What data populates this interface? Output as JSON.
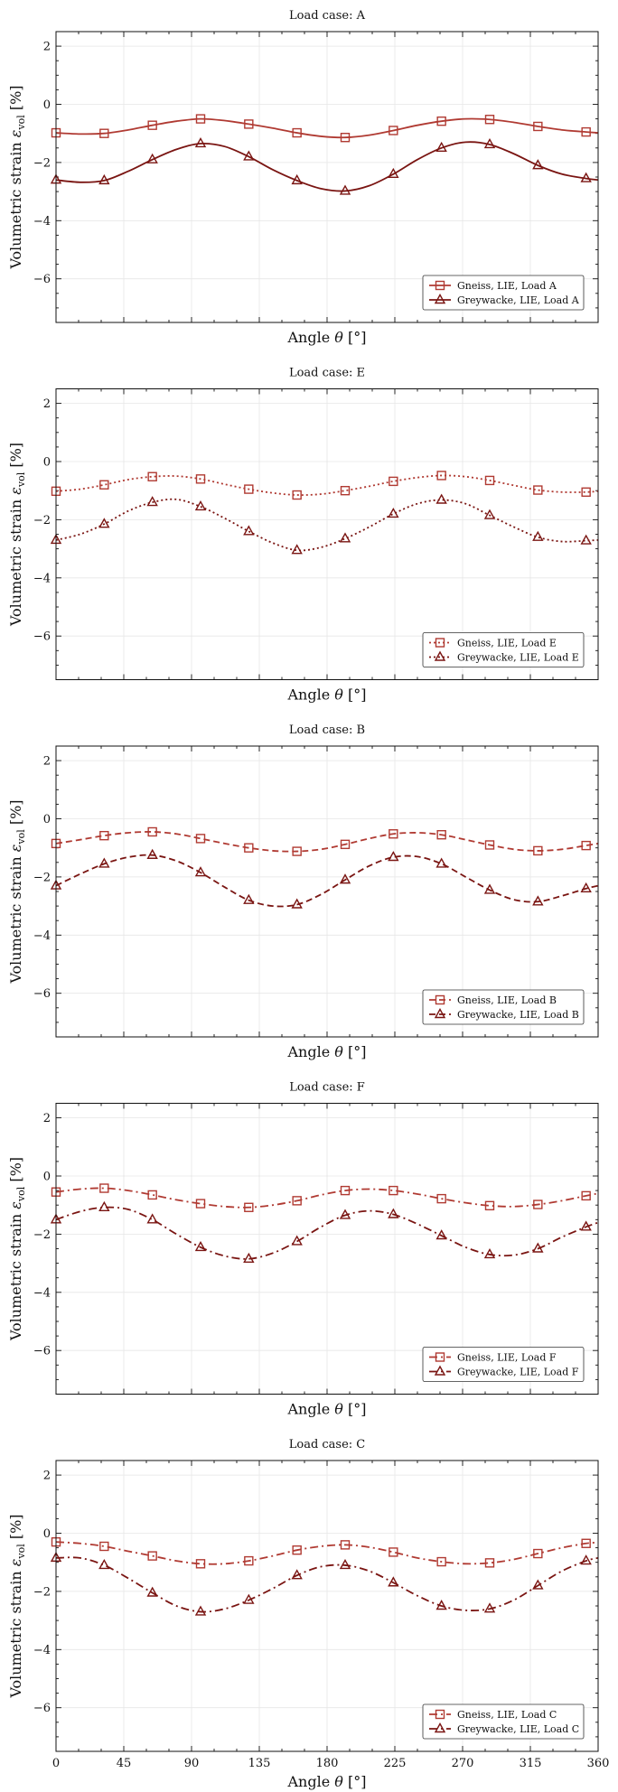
{
  "colors": {
    "gneiss": "#b03a32",
    "greywacke": "#7a1512",
    "grid": "#e6e6e6"
  },
  "chart_data": [
    {
      "type": "line",
      "title": "Load case: A",
      "xlabel": "Angle θ [°]",
      "ylabel": "Volumetric strain ε_vol [%]",
      "xlim": [
        0,
        360
      ],
      "ylim": [
        -7.5,
        2.5
      ],
      "xticks": [
        0,
        45,
        90,
        135,
        180,
        225,
        270,
        315,
        360
      ],
      "yticks": [
        -6,
        -4,
        -2,
        0,
        2
      ],
      "grid": true,
      "legend": "lower-right",
      "line_style": "solid",
      "series": [
        {
          "name": "Gneiss, LIE, Load A",
          "marker": "square",
          "color": "#b03a32",
          "x": [
            0,
            16,
            32,
            48,
            64,
            80,
            96,
            112,
            128,
            144,
            160,
            176,
            192,
            208,
            224,
            240,
            256,
            272,
            288,
            304,
            320,
            336,
            352,
            360
          ],
          "y": [
            -0.98,
            -1.02,
            -1.0,
            -0.88,
            -0.72,
            -0.58,
            -0.5,
            -0.56,
            -0.68,
            -0.82,
            -0.98,
            -1.1,
            -1.14,
            -1.06,
            -0.9,
            -0.72,
            -0.58,
            -0.5,
            -0.52,
            -0.62,
            -0.76,
            -0.88,
            -0.95,
            -0.98
          ]
        },
        {
          "name": "Greywacke, LIE, Load A",
          "marker": "triangle",
          "color": "#7a1512",
          "x": [
            0,
            16,
            32,
            48,
            64,
            80,
            96,
            112,
            128,
            144,
            160,
            176,
            192,
            208,
            224,
            240,
            256,
            272,
            288,
            304,
            320,
            336,
            352,
            360
          ],
          "y": [
            -2.6,
            -2.68,
            -2.62,
            -2.3,
            -1.9,
            -1.55,
            -1.35,
            -1.45,
            -1.8,
            -2.25,
            -2.62,
            -2.9,
            -2.98,
            -2.8,
            -2.4,
            -1.9,
            -1.5,
            -1.3,
            -1.38,
            -1.7,
            -2.1,
            -2.4,
            -2.55,
            -2.6
          ]
        }
      ]
    },
    {
      "type": "line",
      "title": "Load case: E",
      "xlabel": "Angle θ [°]",
      "ylabel": "Volumetric strain ε_vol [%]",
      "xlim": [
        0,
        360
      ],
      "ylim": [
        -7.5,
        2.5
      ],
      "xticks": [
        0,
        45,
        90,
        135,
        180,
        225,
        270,
        315,
        360
      ],
      "yticks": [
        -6,
        -4,
        -2,
        0,
        2
      ],
      "grid": true,
      "legend": "lower-right",
      "line_style": "dotted",
      "series": [
        {
          "name": "Gneiss, LIE, Load E",
          "marker": "square",
          "color": "#b03a32",
          "x": [
            0,
            16,
            32,
            48,
            64,
            80,
            96,
            112,
            128,
            144,
            160,
            176,
            192,
            208,
            224,
            240,
            256,
            272,
            288,
            304,
            320,
            336,
            352,
            360
          ],
          "y": [
            -1.02,
            -0.95,
            -0.8,
            -0.62,
            -0.52,
            -0.5,
            -0.6,
            -0.78,
            -0.95,
            -1.08,
            -1.15,
            -1.12,
            -1.0,
            -0.85,
            -0.68,
            -0.55,
            -0.48,
            -0.52,
            -0.65,
            -0.82,
            -0.98,
            -1.05,
            -1.05,
            -1.02
          ]
        },
        {
          "name": "Greywacke, LIE, Load E",
          "marker": "triangle",
          "color": "#7a1512",
          "x": [
            0,
            16,
            32,
            48,
            64,
            80,
            96,
            112,
            128,
            144,
            160,
            176,
            192,
            208,
            224,
            240,
            256,
            272,
            288,
            304,
            320,
            336,
            352,
            360
          ],
          "y": [
            -2.7,
            -2.5,
            -2.15,
            -1.7,
            -1.4,
            -1.3,
            -1.55,
            -1.95,
            -2.4,
            -2.8,
            -3.05,
            -2.95,
            -2.65,
            -2.25,
            -1.8,
            -1.45,
            -1.32,
            -1.45,
            -1.85,
            -2.25,
            -2.6,
            -2.75,
            -2.72,
            -2.7
          ]
        }
      ]
    },
    {
      "type": "line",
      "title": "Load case: B",
      "xlabel": "Angle θ [°]",
      "ylabel": "Volumetric strain ε_vol [%]",
      "xlim": [
        0,
        360
      ],
      "ylim": [
        -7.5,
        2.5
      ],
      "xticks": [
        0,
        45,
        90,
        135,
        180,
        225,
        270,
        315,
        360
      ],
      "yticks": [
        -6,
        -4,
        -2,
        0,
        2
      ],
      "grid": true,
      "legend": "lower-right",
      "line_style": "dashed",
      "series": [
        {
          "name": "Gneiss, LIE, Load B",
          "marker": "square",
          "color": "#b03a32",
          "x": [
            0,
            16,
            32,
            48,
            64,
            80,
            96,
            112,
            128,
            144,
            160,
            176,
            192,
            208,
            224,
            240,
            256,
            272,
            288,
            304,
            320,
            336,
            352,
            360
          ],
          "y": [
            -0.85,
            -0.72,
            -0.58,
            -0.48,
            -0.45,
            -0.52,
            -0.68,
            -0.85,
            -1.0,
            -1.1,
            -1.12,
            -1.05,
            -0.88,
            -0.68,
            -0.52,
            -0.48,
            -0.55,
            -0.72,
            -0.9,
            -1.05,
            -1.1,
            -1.05,
            -0.92,
            -0.85
          ]
        },
        {
          "name": "Greywacke, LIE, Load B",
          "marker": "triangle",
          "color": "#7a1512",
          "x": [
            0,
            16,
            32,
            48,
            64,
            80,
            96,
            112,
            128,
            144,
            160,
            176,
            192,
            208,
            224,
            240,
            256,
            272,
            288,
            304,
            320,
            336,
            352,
            360
          ],
          "y": [
            -2.3,
            -1.9,
            -1.55,
            -1.32,
            -1.25,
            -1.45,
            -1.85,
            -2.35,
            -2.8,
            -3.0,
            -2.95,
            -2.6,
            -2.1,
            -1.62,
            -1.32,
            -1.3,
            -1.55,
            -2.0,
            -2.45,
            -2.78,
            -2.85,
            -2.65,
            -2.4,
            -2.3
          ]
        }
      ]
    },
    {
      "type": "line",
      "title": "Load case: F",
      "xlabel": "Angle θ [°]",
      "ylabel": "Volumetric strain ε_vol [%]",
      "xlim": [
        0,
        360
      ],
      "ylim": [
        -7.5,
        2.5
      ],
      "xticks": [
        0,
        45,
        90,
        135,
        180,
        225,
        270,
        315,
        360
      ],
      "yticks": [
        -6,
        -4,
        -2,
        0,
        2
      ],
      "grid": true,
      "legend": "lower-right",
      "line_style": "dashdot",
      "series": [
        {
          "name": "Gneiss, LIE, Load F",
          "marker": "square",
          "color": "#b03a32",
          "x": [
            0,
            16,
            32,
            48,
            64,
            80,
            96,
            112,
            128,
            144,
            160,
            176,
            192,
            208,
            224,
            240,
            256,
            272,
            288,
            304,
            320,
            336,
            352,
            360
          ],
          "y": [
            -0.55,
            -0.45,
            -0.42,
            -0.5,
            -0.65,
            -0.82,
            -0.95,
            -1.05,
            -1.08,
            -1.0,
            -0.85,
            -0.65,
            -0.5,
            -0.45,
            -0.5,
            -0.62,
            -0.78,
            -0.92,
            -1.02,
            -1.05,
            -0.98,
            -0.85,
            -0.68,
            -0.6
          ]
        },
        {
          "name": "Greywacke, LIE, Load F",
          "marker": "triangle",
          "color": "#7a1512",
          "x": [
            0,
            16,
            32,
            48,
            64,
            80,
            96,
            112,
            128,
            144,
            160,
            176,
            192,
            208,
            224,
            240,
            256,
            272,
            288,
            304,
            320,
            336,
            352,
            360
          ],
          "y": [
            -1.5,
            -1.22,
            -1.08,
            -1.15,
            -1.5,
            -2.0,
            -2.45,
            -2.75,
            -2.85,
            -2.65,
            -2.25,
            -1.75,
            -1.35,
            -1.2,
            -1.32,
            -1.65,
            -2.05,
            -2.45,
            -2.7,
            -2.72,
            -2.5,
            -2.1,
            -1.75,
            -1.6
          ]
        }
      ]
    },
    {
      "type": "line",
      "title": "Load case: C",
      "xlabel": "Angle θ [°]",
      "ylabel": "Volumetric strain ε_vol [%]",
      "xlim": [
        0,
        360
      ],
      "ylim": [
        -7.5,
        2.5
      ],
      "xticks": [
        0,
        45,
        90,
        135,
        180,
        225,
        270,
        315,
        360
      ],
      "yticks": [
        -6,
        -4,
        -2,
        0,
        2
      ],
      "grid": true,
      "legend": "lower-right",
      "line_style": "dashdot",
      "series": [
        {
          "name": "Gneiss, LIE, Load C",
          "marker": "square",
          "color": "#b03a32",
          "x": [
            0,
            16,
            32,
            48,
            64,
            80,
            96,
            112,
            128,
            144,
            160,
            176,
            192,
            208,
            224,
            240,
            256,
            272,
            288,
            304,
            320,
            336,
            352,
            360
          ],
          "y": [
            -0.3,
            -0.35,
            -0.45,
            -0.62,
            -0.78,
            -0.95,
            -1.05,
            -1.05,
            -0.95,
            -0.78,
            -0.58,
            -0.45,
            -0.4,
            -0.48,
            -0.65,
            -0.85,
            -0.98,
            -1.05,
            -1.02,
            -0.9,
            -0.7,
            -0.5,
            -0.35,
            -0.32
          ]
        },
        {
          "name": "Greywacke, LIE, Load C",
          "marker": "triangle",
          "color": "#7a1512",
          "x": [
            0,
            16,
            32,
            48,
            64,
            80,
            96,
            112,
            128,
            144,
            160,
            176,
            192,
            208,
            224,
            240,
            256,
            272,
            288,
            304,
            320,
            336,
            352,
            360
          ],
          "y": [
            -0.85,
            -0.85,
            -1.1,
            -1.55,
            -2.05,
            -2.5,
            -2.7,
            -2.6,
            -2.3,
            -1.9,
            -1.45,
            -1.15,
            -1.1,
            -1.3,
            -1.7,
            -2.15,
            -2.5,
            -2.65,
            -2.6,
            -2.3,
            -1.8,
            -1.3,
            -0.95,
            -0.85
          ]
        }
      ]
    }
  ]
}
